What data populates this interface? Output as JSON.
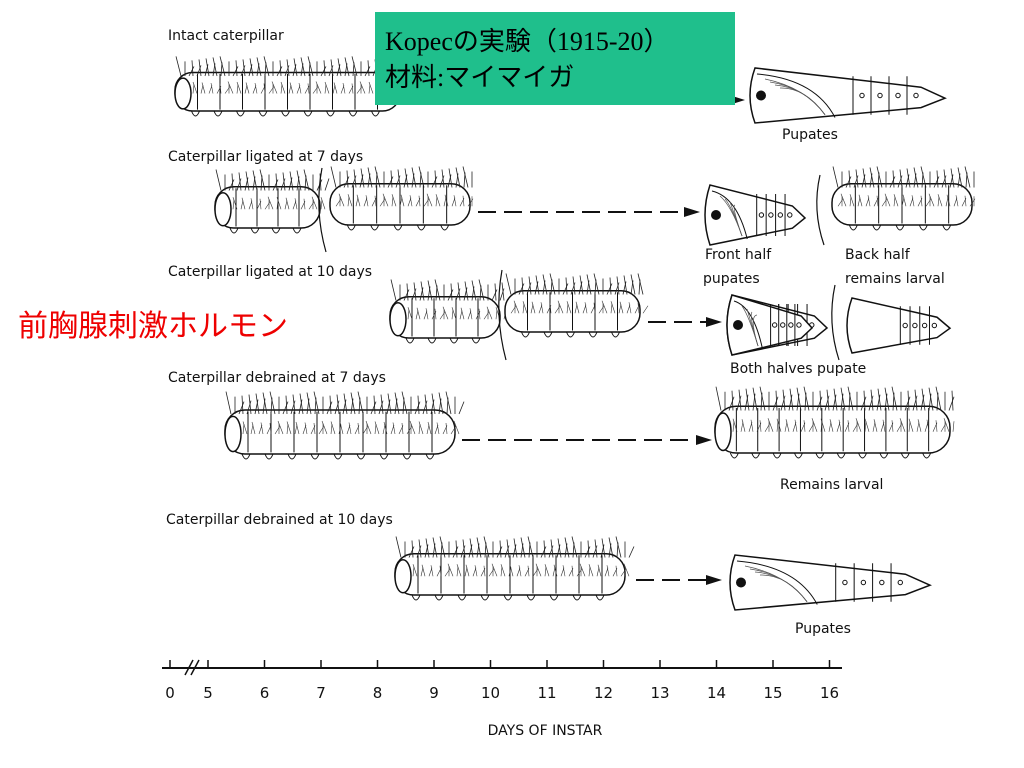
{
  "title_box": {
    "line1": "Kopecの実験（1915-20）",
    "line2": "材料:マイマイガ"
  },
  "side_label": "前胸腺刺激ホルモン",
  "rows": [
    {
      "label": "Intact caterpillar",
      "results": [
        "Pupates"
      ]
    },
    {
      "label": "Caterpillar ligated at 7 days",
      "results": [
        "Front half",
        "pupates",
        "Back half",
        "remains larval"
      ]
    },
    {
      "label": "Caterpillar ligated at 10 days",
      "results": [
        "Both halves pupate"
      ]
    },
    {
      "label": "Caterpillar debrained at 7 days",
      "results": [
        "Remains larval"
      ]
    },
    {
      "label": "Caterpillar debrained at 10 days",
      "results": [
        "Pupates"
      ]
    }
  ],
  "axis": {
    "ticks": [
      0,
      5,
      6,
      7,
      8,
      9,
      10,
      11,
      12,
      13,
      14,
      15,
      16
    ],
    "label": "DAYS OF INSTAR"
  }
}
